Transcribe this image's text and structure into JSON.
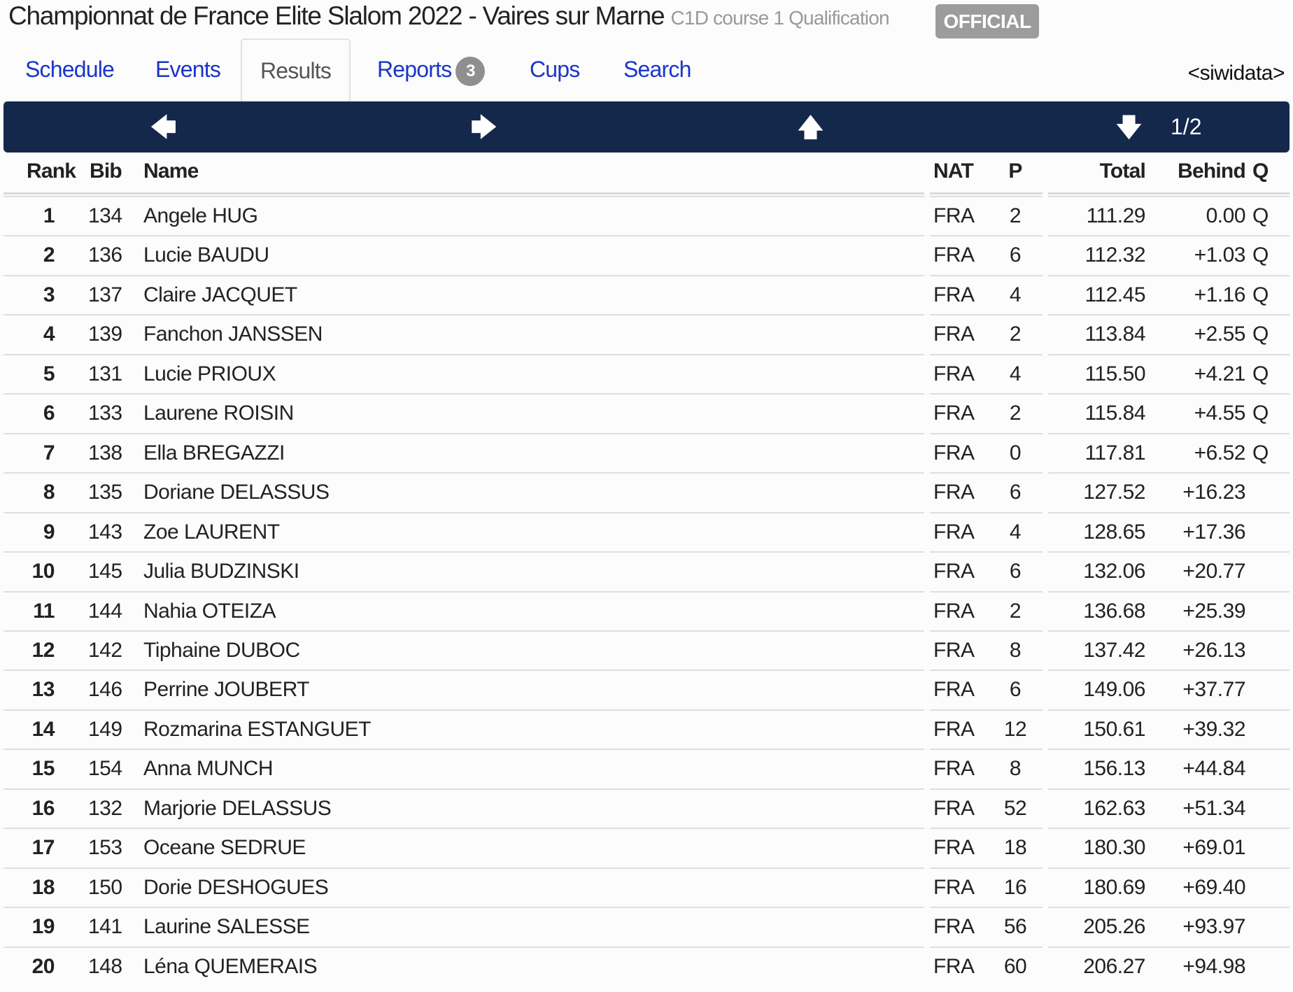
{
  "header": {
    "title": "Championnat de France Elite Slalom 2022 - Vaires sur Marne",
    "subtitle": "C1D course 1 Qualification",
    "status_badge": "OFFICIAL",
    "brand": "<siwidata>"
  },
  "tabs": [
    {
      "label": "Schedule"
    },
    {
      "label": "Events"
    },
    {
      "label": "Results",
      "active": true
    },
    {
      "label": "Reports",
      "count": "3"
    },
    {
      "label": "Cups"
    },
    {
      "label": "Search"
    }
  ],
  "navbar": {
    "prev_icon": "arrow-left-icon",
    "next_icon": "arrow-right-icon",
    "up_icon": "arrow-up-icon",
    "down_icon": "arrow-down-icon",
    "prev": "🡄",
    "next": "🡆",
    "up": "🡅",
    "down": "🡇",
    "page": "1/2",
    "color": "#14284b"
  },
  "table": {
    "columns": {
      "rank": "Rank",
      "bib": "Bib",
      "name": "Name",
      "nat": "NAT",
      "p": "P",
      "total": "Total",
      "behind": "Behind",
      "q": "Q"
    },
    "rows": [
      {
        "rank": "1",
        "bib": "134",
        "name": "Angele HUG",
        "nat": "FRA",
        "p": "2",
        "total": "111.29",
        "behind": "0.00",
        "q": "Q"
      },
      {
        "rank": "2",
        "bib": "136",
        "name": "Lucie BAUDU",
        "nat": "FRA",
        "p": "6",
        "total": "112.32",
        "behind": "+1.03",
        "q": "Q"
      },
      {
        "rank": "3",
        "bib": "137",
        "name": "Claire JACQUET",
        "nat": "FRA",
        "p": "4",
        "total": "112.45",
        "behind": "+1.16",
        "q": "Q"
      },
      {
        "rank": "4",
        "bib": "139",
        "name": "Fanchon JANSSEN",
        "nat": "FRA",
        "p": "2",
        "total": "113.84",
        "behind": "+2.55",
        "q": "Q"
      },
      {
        "rank": "5",
        "bib": "131",
        "name": "Lucie PRIOUX",
        "nat": "FRA",
        "p": "4",
        "total": "115.50",
        "behind": "+4.21",
        "q": "Q"
      },
      {
        "rank": "6",
        "bib": "133",
        "name": "Laurene ROISIN",
        "nat": "FRA",
        "p": "2",
        "total": "115.84",
        "behind": "+4.55",
        "q": "Q"
      },
      {
        "rank": "7",
        "bib": "138",
        "name": "Ella BREGAZZI",
        "nat": "FRA",
        "p": "0",
        "total": "117.81",
        "behind": "+6.52",
        "q": "Q"
      },
      {
        "rank": "8",
        "bib": "135",
        "name": "Doriane DELASSUS",
        "nat": "FRA",
        "p": "6",
        "total": "127.52",
        "behind": "+16.23",
        "q": ""
      },
      {
        "rank": "9",
        "bib": "143",
        "name": "Zoe LAURENT",
        "nat": "FRA",
        "p": "4",
        "total": "128.65",
        "behind": "+17.36",
        "q": ""
      },
      {
        "rank": "10",
        "bib": "145",
        "name": "Julia BUDZINSKI",
        "nat": "FRA",
        "p": "6",
        "total": "132.06",
        "behind": "+20.77",
        "q": ""
      },
      {
        "rank": "11",
        "bib": "144",
        "name": "Nahia OTEIZA",
        "nat": "FRA",
        "p": "2",
        "total": "136.68",
        "behind": "+25.39",
        "q": ""
      },
      {
        "rank": "12",
        "bib": "142",
        "name": "Tiphaine DUBOC",
        "nat": "FRA",
        "p": "8",
        "total": "137.42",
        "behind": "+26.13",
        "q": ""
      },
      {
        "rank": "13",
        "bib": "146",
        "name": "Perrine JOUBERT",
        "nat": "FRA",
        "p": "6",
        "total": "149.06",
        "behind": "+37.77",
        "q": ""
      },
      {
        "rank": "14",
        "bib": "149",
        "name": "Rozmarina ESTANGUET",
        "nat": "FRA",
        "p": "12",
        "total": "150.61",
        "behind": "+39.32",
        "q": ""
      },
      {
        "rank": "15",
        "bib": "154",
        "name": "Anna MUNCH",
        "nat": "FRA",
        "p": "8",
        "total": "156.13",
        "behind": "+44.84",
        "q": ""
      },
      {
        "rank": "16",
        "bib": "132",
        "name": "Marjorie DELASSUS",
        "nat": "FRA",
        "p": "52",
        "total": "162.63",
        "behind": "+51.34",
        "q": ""
      },
      {
        "rank": "17",
        "bib": "153",
        "name": "Oceane SEDRUE",
        "nat": "FRA",
        "p": "18",
        "total": "180.30",
        "behind": "+69.01",
        "q": ""
      },
      {
        "rank": "18",
        "bib": "150",
        "name": "Dorie DESHOGUES",
        "nat": "FRA",
        "p": "16",
        "total": "180.69",
        "behind": "+69.40",
        "q": ""
      },
      {
        "rank": "19",
        "bib": "141",
        "name": "Laurine SALESSE",
        "nat": "FRA",
        "p": "56",
        "total": "205.26",
        "behind": "+93.97",
        "q": ""
      },
      {
        "rank": "20",
        "bib": "148",
        "name": "Léna QUEMERAIS",
        "nat": "FRA",
        "p": "60",
        "total": "206.27",
        "behind": "+94.98",
        "q": ""
      }
    ]
  }
}
